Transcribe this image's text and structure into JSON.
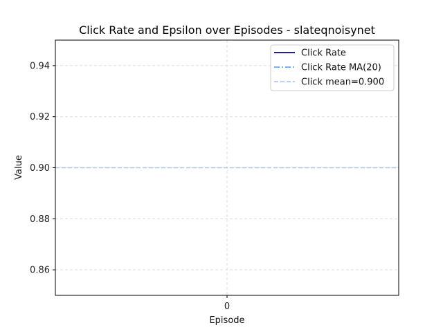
{
  "chart_data": {
    "type": "line",
    "title": "Click Rate and Epsilon over Episodes - slateqnoisynet",
    "xlabel": "Episode",
    "ylabel": "Value",
    "x_ticks": [
      0
    ],
    "y_ticks": [
      0.86,
      0.88,
      0.9,
      0.92,
      0.94
    ],
    "y_tick_labels": [
      "0.86",
      "0.88",
      "0.90",
      "0.92",
      "0.94"
    ],
    "x_tick_labels": [
      "0"
    ],
    "xlim": [
      -0.055,
      0.055
    ],
    "ylim": [
      0.85,
      0.95
    ],
    "grid": true,
    "legend_position": "top-right",
    "series": [
      {
        "name": "Click Rate",
        "x": [
          0
        ],
        "y": [
          0.9
        ],
        "color": "#00008b",
        "style": "solid"
      },
      {
        "name": "Click Rate MA(20)",
        "x": [
          0
        ],
        "y": [
          0.9
        ],
        "color": "#6fa8e8",
        "style": "dashdot"
      },
      {
        "name": "Click mean=0.900",
        "constant": 0.9,
        "color": "#a8c8f0",
        "style": "dashed"
      }
    ]
  }
}
